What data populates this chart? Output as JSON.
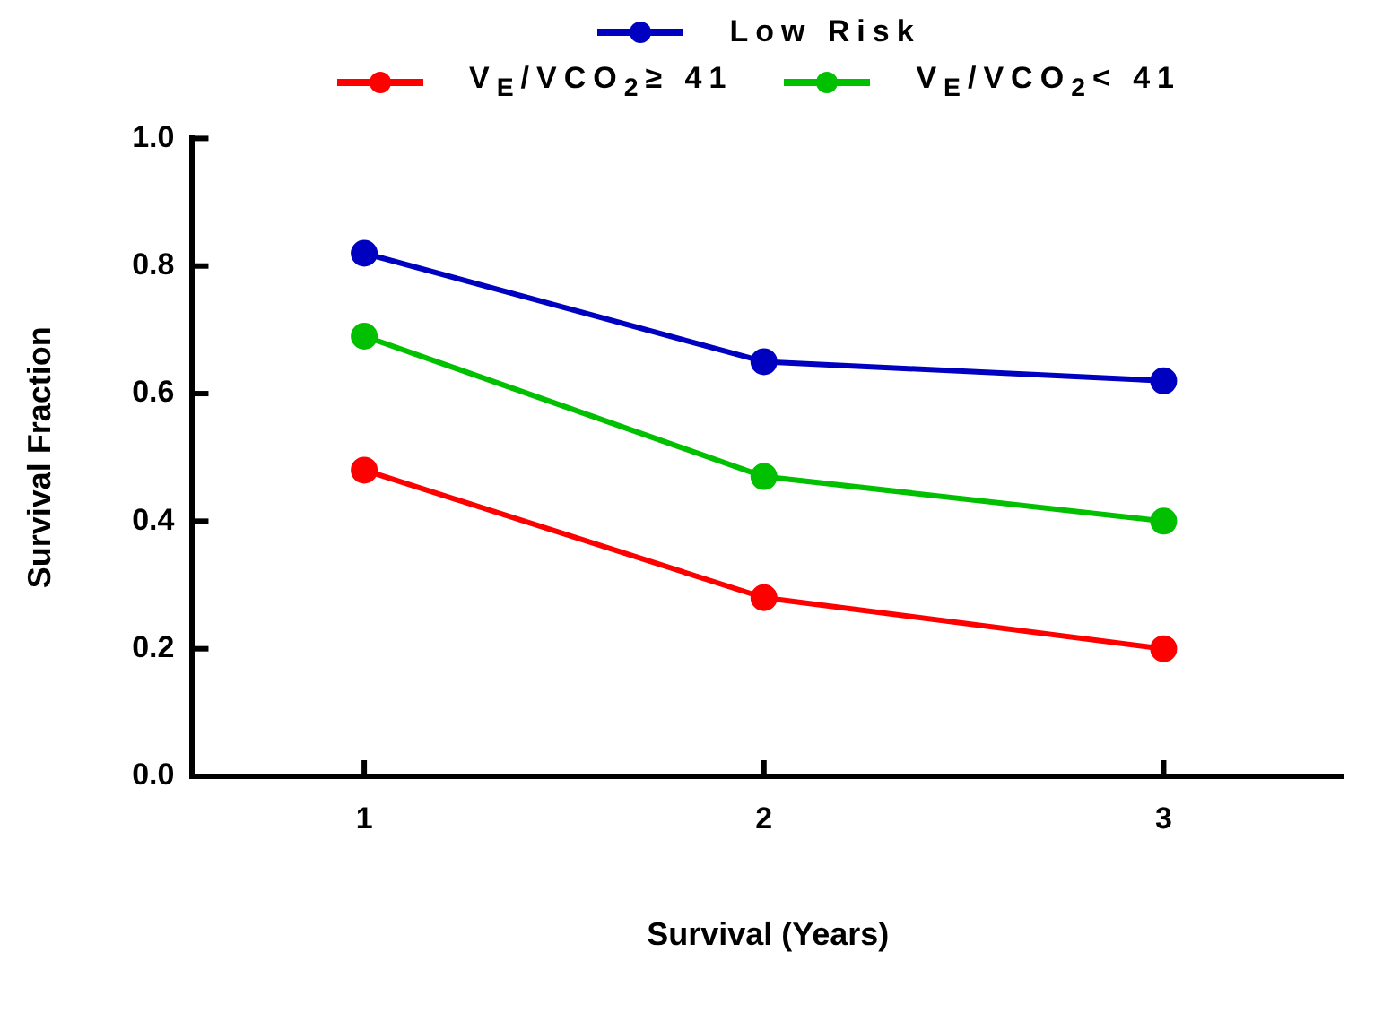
{
  "chart_data": {
    "type": "line",
    "xlabel": "Survival (Years)",
    "ylabel": "Survival Fraction",
    "x": [
      1,
      2,
      3
    ],
    "series": [
      {
        "name": "Low Risk",
        "color": "#0000c0",
        "values": [
          0.82,
          0.65,
          0.62
        ]
      },
      {
        "name": "V$_{E}$/VCO$_{2}$≥ 41",
        "color": "#ff0000",
        "values": [
          0.48,
          0.28,
          0.2
        ]
      },
      {
        "name": "V$_{E}$/VCO$_{2}$< 41",
        "color": "#00c000",
        "values": [
          0.69,
          0.47,
          0.4
        ]
      }
    ],
    "xlim": [
      0.57,
      3.45
    ],
    "xticks": [
      1,
      2,
      3
    ],
    "ylim": [
      0,
      1
    ],
    "yticks": [
      {
        "value": 0,
        "label": "0.0"
      },
      {
        "value": 0.2,
        "label": "0.2"
      },
      {
        "value": 0.4,
        "label": "0.4"
      },
      {
        "value": 0.6,
        "label": "0.6"
      },
      {
        "value": 0.8,
        "label": "0.8"
      },
      {
        "value": 1,
        "label": "1.0"
      }
    ],
    "marker": "circle",
    "line_style": "solid",
    "legend": "top",
    "grid": false
  }
}
